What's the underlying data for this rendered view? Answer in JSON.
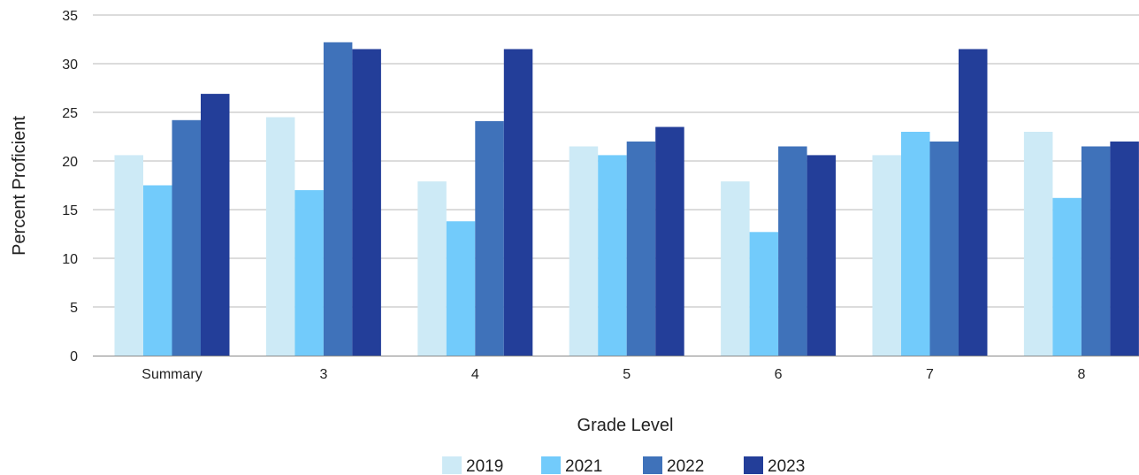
{
  "chart_data": {
    "type": "bar",
    "title": "",
    "xlabel": "Grade Level",
    "ylabel": "Percent Proficient",
    "ylim": [
      0,
      35
    ],
    "yticks": [
      0,
      5,
      10,
      15,
      20,
      25,
      30,
      35
    ],
    "grid": true,
    "legend_position": "bottom",
    "categories": [
      "Summary",
      "3",
      "4",
      "5",
      "6",
      "7",
      "8"
    ],
    "series": [
      {
        "name": "2019",
        "color": "#cdeaf6",
        "values": [
          20.6,
          24.5,
          17.9,
          21.5,
          17.9,
          20.6,
          23.0
        ]
      },
      {
        "name": "2021",
        "color": "#72cbfb",
        "values": [
          17.5,
          17.0,
          13.8,
          20.6,
          12.7,
          23.0,
          16.2
        ]
      },
      {
        "name": "2022",
        "color": "#3f72ba",
        "values": [
          24.2,
          32.2,
          24.1,
          22.0,
          21.5,
          22.0,
          21.5
        ]
      },
      {
        "name": "2023",
        "color": "#233e99",
        "values": [
          26.9,
          31.5,
          31.5,
          23.5,
          20.6,
          31.5,
          22.0
        ]
      }
    ]
  }
}
